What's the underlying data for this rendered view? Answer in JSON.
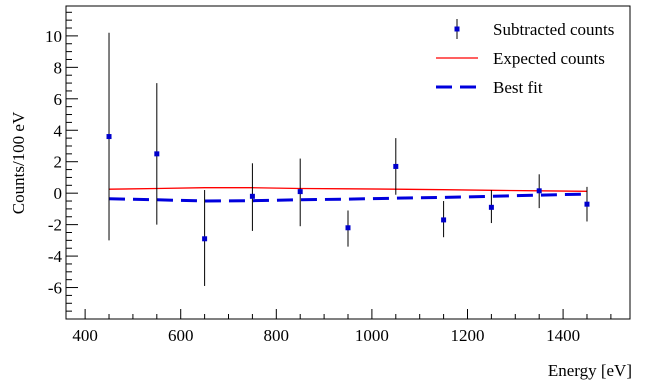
{
  "chart_data": {
    "type": "scatter",
    "xlabel": "Energy [eV]",
    "ylabel": "Counts/100 eV",
    "xlim": [
      360,
      1540
    ],
    "ylim": [
      -8.0,
      11.9
    ],
    "x_ticks": [
      400,
      600,
      800,
      1000,
      1200,
      1400
    ],
    "y_ticks": [
      -6,
      -4,
      -2,
      0,
      2,
      4,
      6,
      8,
      10
    ],
    "grid": false,
    "legend_position": "top-right",
    "series": [
      {
        "name": "Subtracted counts",
        "kind": "points-with-errors",
        "color": "#0000cc",
        "x": [
          450,
          550,
          650,
          750,
          850,
          950,
          1050,
          1150,
          1250,
          1350,
          1450
        ],
        "y": [
          3.6,
          2.5,
          -2.9,
          -0.2,
          0.1,
          -2.2,
          1.7,
          -1.7,
          -0.9,
          0.15,
          -0.7
        ],
        "y_err_low": [
          6.6,
          4.5,
          3.0,
          2.2,
          2.2,
          1.2,
          1.8,
          1.1,
          1.0,
          1.1,
          1.1
        ],
        "y_err_high": [
          6.6,
          4.5,
          3.1,
          2.1,
          2.1,
          1.1,
          1.8,
          1.2,
          1.1,
          1.05,
          1.1
        ]
      },
      {
        "name": "Expected counts",
        "kind": "line",
        "color": "#ff0000",
        "x": [
          450,
          550,
          650,
          750,
          850,
          950,
          1050,
          1150,
          1250,
          1350,
          1450
        ],
        "y": [
          0.25,
          0.3,
          0.35,
          0.35,
          0.3,
          0.28,
          0.25,
          0.22,
          0.18,
          0.15,
          0.12
        ]
      },
      {
        "name": "Best fit",
        "kind": "dashed-line",
        "color": "#0000dd",
        "x": [
          450,
          550,
          650,
          750,
          850,
          950,
          1050,
          1150,
          1250,
          1350,
          1450
        ],
        "y": [
          -0.35,
          -0.42,
          -0.5,
          -0.48,
          -0.42,
          -0.38,
          -0.32,
          -0.27,
          -0.2,
          -0.12,
          -0.06
        ]
      }
    ]
  }
}
